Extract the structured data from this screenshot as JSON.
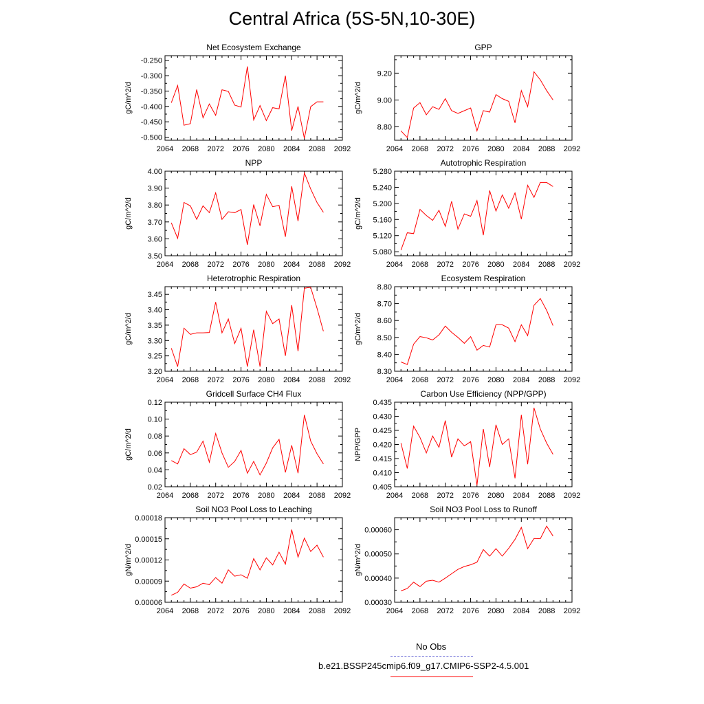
{
  "page": {
    "title": "Central Africa (5S-5N,10-30E)"
  },
  "legend": {
    "entries": [
      {
        "label": "No Obs",
        "color": "#6b6bd6",
        "style": "dashed"
      },
      {
        "label": "b.e21.BSSP245cmip6.f09_g17.CMIP6-SSP2-4.5.001",
        "color": "#ff0000",
        "style": "solid"
      }
    ]
  },
  "chart_data": [
    {
      "type": "line",
      "title": "Net Ecosystem Exchange",
      "ylabel": "gC/m^2/d",
      "xlabel": "",
      "x": [
        2065,
        2066,
        2067,
        2068,
        2069,
        2070,
        2071,
        2072,
        2073,
        2074,
        2075,
        2076,
        2077,
        2078,
        2079,
        2080,
        2081,
        2082,
        2083,
        2084,
        2085,
        2086,
        2087,
        2088,
        2089
      ],
      "xlim": [
        2064,
        2092
      ],
      "xticks": [
        "2064",
        "2068",
        "2072",
        "2076",
        "2080",
        "2084",
        "2088",
        "2092"
      ],
      "ylim": [
        -0.51,
        -0.235
      ],
      "yticks": [
        "-0.500",
        "-0.450",
        "-0.400",
        "-0.350",
        "-0.300",
        "-0.250"
      ],
      "series": [
        {
          "color": "#ff0000",
          "values": [
            -0.388,
            -0.332,
            -0.461,
            -0.456,
            -0.345,
            -0.437,
            -0.392,
            -0.429,
            -0.346,
            -0.351,
            -0.396,
            -0.402,
            -0.27,
            -0.444,
            -0.397,
            -0.446,
            -0.404,
            -0.408,
            -0.3,
            -0.479,
            -0.4,
            -0.504,
            -0.401,
            -0.385,
            -0.385
          ]
        }
      ]
    },
    {
      "type": "line",
      "title": "GPP",
      "ylabel": "gC/m^2/d",
      "xlabel": "",
      "x": [
        2065,
        2066,
        2067,
        2068,
        2069,
        2070,
        2071,
        2072,
        2073,
        2074,
        2075,
        2076,
        2077,
        2078,
        2079,
        2080,
        2081,
        2082,
        2083,
        2084,
        2085,
        2086,
        2087,
        2088,
        2089
      ],
      "xlim": [
        2064,
        2092
      ],
      "xticks": [
        "2064",
        "2068",
        "2072",
        "2076",
        "2080",
        "2084",
        "2088",
        "2092"
      ],
      "ylim": [
        8.7,
        9.33
      ],
      "yticks": [
        "8.80",
        "9.00",
        "9.20"
      ],
      "series": [
        {
          "color": "#ff0000",
          "values": [
            8.77,
            8.72,
            8.94,
            8.98,
            8.89,
            8.95,
            8.93,
            9.01,
            8.92,
            8.9,
            8.92,
            8.94,
            8.77,
            8.92,
            8.91,
            9.04,
            9.01,
            8.99,
            8.83,
            9.07,
            8.95,
            9.21,
            9.15,
            9.07,
            9.0
          ]
        }
      ]
    },
    {
      "type": "line",
      "title": "NPP",
      "ylabel": "gC/m^2/d",
      "xlabel": "",
      "x": [
        2065,
        2066,
        2067,
        2068,
        2069,
        2070,
        2071,
        2072,
        2073,
        2074,
        2075,
        2076,
        2077,
        2078,
        2079,
        2080,
        2081,
        2082,
        2083,
        2084,
        2085,
        2086,
        2087,
        2088,
        2089
      ],
      "xlim": [
        2064,
        2092
      ],
      "xticks": [
        "2064",
        "2068",
        "2072",
        "2076",
        "2080",
        "2084",
        "2088",
        "2092"
      ],
      "ylim": [
        3.5,
        4.0
      ],
      "yticks": [
        "3.50",
        "3.60",
        "3.70",
        "3.80",
        "3.90",
        "4.00"
      ],
      "series": [
        {
          "color": "#ff0000",
          "values": [
            3.695,
            3.603,
            3.815,
            3.795,
            3.715,
            3.795,
            3.755,
            3.872,
            3.715,
            3.76,
            3.755,
            3.773,
            3.565,
            3.803,
            3.677,
            3.863,
            3.79,
            3.798,
            3.612,
            3.91,
            3.705,
            3.99,
            3.895,
            3.815,
            3.757
          ]
        }
      ]
    },
    {
      "type": "line",
      "title": "Autotrophic Respiration",
      "ylabel": "gC/m^2/d",
      "xlabel": "",
      "x": [
        2065,
        2066,
        2067,
        2068,
        2069,
        2070,
        2071,
        2072,
        2073,
        2074,
        2075,
        2076,
        2077,
        2078,
        2079,
        2080,
        2081,
        2082,
        2083,
        2084,
        2085,
        2086,
        2087,
        2088,
        2089
      ],
      "xlim": [
        2064,
        2092
      ],
      "xticks": [
        "2064",
        "2068",
        "2072",
        "2076",
        "2080",
        "2084",
        "2088",
        "2092"
      ],
      "ylim": [
        5.07,
        5.28
      ],
      "yticks": [
        "5.080",
        "5.120",
        "5.160",
        "5.200",
        "5.240",
        "5.280"
      ],
      "series": [
        {
          "color": "#ff0000",
          "values": [
            5.084,
            5.127,
            5.125,
            5.185,
            5.17,
            5.158,
            5.183,
            5.143,
            5.205,
            5.136,
            5.174,
            5.168,
            5.207,
            5.121,
            5.232,
            5.181,
            5.221,
            5.188,
            5.226,
            5.161,
            5.245,
            5.215,
            5.252,
            5.252,
            5.242
          ]
        }
      ]
    },
    {
      "type": "line",
      "title": "Heterotrophic Respiration",
      "ylabel": "gC/m^2/d",
      "xlabel": "",
      "x": [
        2065,
        2066,
        2067,
        2068,
        2069,
        2070,
        2071,
        2072,
        2073,
        2074,
        2075,
        2076,
        2077,
        2078,
        2079,
        2080,
        2081,
        2082,
        2083,
        2084,
        2085,
        2086,
        2087,
        2088,
        2089
      ],
      "xlim": [
        2064,
        2092
      ],
      "xticks": [
        "2064",
        "2068",
        "2072",
        "2076",
        "2080",
        "2084",
        "2088",
        "2092"
      ],
      "ylim": [
        3.2,
        3.475
      ],
      "yticks": [
        "3.20",
        "3.25",
        "3.30",
        "3.35",
        "3.40",
        "3.45"
      ],
      "series": [
        {
          "color": "#ff0000",
          "values": [
            3.275,
            3.215,
            3.34,
            3.32,
            3.325,
            3.325,
            3.326,
            3.425,
            3.325,
            3.37,
            3.29,
            3.34,
            3.215,
            3.335,
            3.215,
            3.395,
            3.355,
            3.37,
            3.25,
            3.415,
            3.265,
            3.47,
            3.473,
            3.405,
            3.33
          ]
        }
      ]
    },
    {
      "type": "line",
      "title": "Ecosystem Respiration",
      "ylabel": "gC/m^2/d",
      "xlabel": "",
      "x": [
        2065,
        2066,
        2067,
        2068,
        2069,
        2070,
        2071,
        2072,
        2073,
        2074,
        2075,
        2076,
        2077,
        2078,
        2079,
        2080,
        2081,
        2082,
        2083,
        2084,
        2085,
        2086,
        2087,
        2088,
        2089
      ],
      "xlim": [
        2064,
        2092
      ],
      "xticks": [
        "2064",
        "2068",
        "2072",
        "2076",
        "2080",
        "2084",
        "2088",
        "2092"
      ],
      "ylim": [
        8.3,
        8.8
      ],
      "yticks": [
        "8.30",
        "8.40",
        "8.50",
        "8.60",
        "8.70",
        "8.80"
      ],
      "series": [
        {
          "color": "#ff0000",
          "values": [
            8.355,
            8.34,
            8.46,
            8.505,
            8.498,
            8.485,
            8.515,
            8.567,
            8.53,
            8.5,
            8.465,
            8.505,
            8.425,
            8.453,
            8.443,
            8.575,
            8.575,
            8.555,
            8.475,
            8.575,
            8.51,
            8.69,
            8.73,
            8.66,
            8.57
          ]
        }
      ]
    },
    {
      "type": "line",
      "title": "Gridcell Surface CH4 Flux",
      "ylabel": "gC/m^2/d",
      "xlabel": "",
      "x": [
        2065,
        2066,
        2067,
        2068,
        2069,
        2070,
        2071,
        2072,
        2073,
        2074,
        2075,
        2076,
        2077,
        2078,
        2079,
        2080,
        2081,
        2082,
        2083,
        2084,
        2085,
        2086,
        2087,
        2088,
        2089
      ],
      "xlim": [
        2064,
        2092
      ],
      "xticks": [
        "2064",
        "2068",
        "2072",
        "2076",
        "2080",
        "2084",
        "2088",
        "2092"
      ],
      "ylim": [
        0.02,
        0.12
      ],
      "yticks": [
        "0.02",
        "0.04",
        "0.06",
        "0.08",
        "0.10",
        "0.12"
      ],
      "series": [
        {
          "color": "#ff0000",
          "values": [
            0.051,
            0.047,
            0.065,
            0.058,
            0.061,
            0.074,
            0.049,
            0.083,
            0.06,
            0.043,
            0.05,
            0.063,
            0.036,
            0.05,
            0.034,
            0.048,
            0.066,
            0.076,
            0.037,
            0.069,
            0.036,
            0.105,
            0.074,
            0.059,
            0.047
          ]
        }
      ]
    },
    {
      "type": "line",
      "title": "Carbon Use Efficiency (NPP/GPP)",
      "ylabel": "NPP/GPP",
      "xlabel": "",
      "x": [
        2065,
        2066,
        2067,
        2068,
        2069,
        2070,
        2071,
        2072,
        2073,
        2074,
        2075,
        2076,
        2077,
        2078,
        2079,
        2080,
        2081,
        2082,
        2083,
        2084,
        2085,
        2086,
        2087,
        2088,
        2089
      ],
      "xlim": [
        2064,
        2092
      ],
      "xticks": [
        "2064",
        "2068",
        "2072",
        "2076",
        "2080",
        "2084",
        "2088",
        "2092"
      ],
      "ylim": [
        0.405,
        0.435
      ],
      "yticks": [
        "0.405",
        "0.410",
        "0.415",
        "0.420",
        "0.425",
        "0.430",
        "0.435"
      ],
      "series": [
        {
          "color": "#ff0000",
          "values": [
            0.4205,
            0.4115,
            0.4265,
            0.4225,
            0.417,
            0.423,
            0.419,
            0.4285,
            0.4155,
            0.422,
            0.4195,
            0.421,
            0.4055,
            0.4255,
            0.412,
            0.427,
            0.42,
            0.422,
            0.408,
            0.4305,
            0.413,
            0.433,
            0.4255,
            0.4205,
            0.4165
          ]
        }
      ]
    },
    {
      "type": "line",
      "title": "Soil NO3 Pool Loss to Leaching",
      "ylabel": "gN/m^2/d",
      "xlabel": "",
      "x": [
        2065,
        2066,
        2067,
        2068,
        2069,
        2070,
        2071,
        2072,
        2073,
        2074,
        2075,
        2076,
        2077,
        2078,
        2079,
        2080,
        2081,
        2082,
        2083,
        2084,
        2085,
        2086,
        2087,
        2088,
        2089
      ],
      "xlim": [
        2064,
        2092
      ],
      "xticks": [
        "2064",
        "2068",
        "2072",
        "2076",
        "2080",
        "2084",
        "2088",
        "2092"
      ],
      "ylim": [
        6e-05,
        0.00018
      ],
      "yticks": [
        "0.00006",
        "0.00009",
        "0.00012",
        "0.00015",
        "0.00018"
      ],
      "series": [
        {
          "color": "#ff0000",
          "values": [
            7e-05,
            7.4e-05,
            8.6e-05,
            8e-05,
            8.2e-05,
            8.7e-05,
            8.5e-05,
            9.5e-05,
            8.7e-05,
            0.000106,
            9.7e-05,
            9.9e-05,
            9.4e-05,
            0.000122,
            0.000106,
            0.000123,
            0.000113,
            0.000131,
            0.000114,
            0.000163,
            0.000124,
            0.000151,
            0.000132,
            0.000141,
            0.000124
          ]
        }
      ]
    },
    {
      "type": "line",
      "title": "Soil NO3 Pool Loss to Runoff",
      "ylabel": "gN/m^2/d",
      "xlabel": "",
      "x": [
        2065,
        2066,
        2067,
        2068,
        2069,
        2070,
        2071,
        2072,
        2073,
        2074,
        2075,
        2076,
        2077,
        2078,
        2079,
        2080,
        2081,
        2082,
        2083,
        2084,
        2085,
        2086,
        2087,
        2088,
        2089
      ],
      "xlim": [
        2064,
        2092
      ],
      "xticks": [
        "2064",
        "2068",
        "2072",
        "2076",
        "2080",
        "2084",
        "2088",
        "2092"
      ],
      "ylim": [
        0.0003,
        0.00065
      ],
      "yticks": [
        "0.00030",
        "0.00040",
        "0.00050",
        "0.00060"
      ],
      "series": [
        {
          "color": "#ff0000",
          "values": [
            0.000347,
            0.000357,
            0.000383,
            0.000365,
            0.000387,
            0.000391,
            0.000383,
            0.0004,
            0.000418,
            0.000436,
            0.000448,
            0.000455,
            0.000466,
            0.000518,
            0.000491,
            0.000522,
            0.000491,
            0.000523,
            0.00056,
            0.00061,
            0.000522,
            0.000564,
            0.000563,
            0.000615,
            0.000574
          ]
        }
      ]
    }
  ]
}
